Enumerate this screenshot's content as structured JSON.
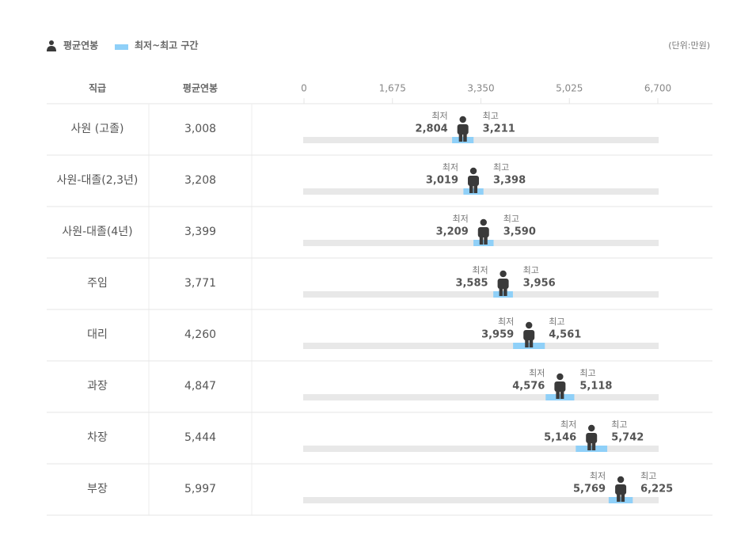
{
  "chart_data": {
    "type": "range",
    "unit_note": "(단위:만원)",
    "column_headers": [
      "직급",
      "평균연봉"
    ],
    "categories": [
      "사원 (고졸)",
      "사원-대졸(2,3년)",
      "사원-대졸(4년)",
      "주임",
      "대리",
      "과장",
      "차장",
      "부장"
    ],
    "min_label": "최저",
    "max_label": "최고",
    "xlim": [
      0,
      6700
    ],
    "xticks": [
      0,
      {
        "value": 1675,
        "label": "1,675"
      },
      {
        "value": 3350,
        "label": "3,350"
      },
      {
        "value": 5025,
        "label": "5,025"
      },
      {
        "value": 6700,
        "label": "6,700"
      }
    ],
    "track_color": "#e8e8e8",
    "series": [
      {
        "name": "평균연봉",
        "color": "#3a3a3a",
        "values": [
          3008,
          3208,
          3399,
          3771,
          4260,
          4847,
          5444,
          5997
        ],
        "value_labels": [
          "3,008",
          "3,208",
          "3,399",
          "3,771",
          "4,260",
          "4,847",
          "5,444",
          "5,997"
        ]
      },
      {
        "name": "최저~최고 구간",
        "color": "#8fd0f8",
        "low": [
          2804,
          3019,
          3209,
          3585,
          3959,
          4576,
          5146,
          5769
        ],
        "low_labels": [
          "2,804",
          "3,019",
          "3,209",
          "3,585",
          "3,959",
          "4,576",
          "5,146",
          "5,769"
        ],
        "high": [
          3211,
          3398,
          3590,
          3956,
          4561,
          5118,
          5742,
          6225
        ],
        "high_labels": [
          "3,211",
          "3,398",
          "3,590",
          "3,956",
          "4,561",
          "5,118",
          "5,742",
          "6,225"
        ]
      }
    ]
  }
}
